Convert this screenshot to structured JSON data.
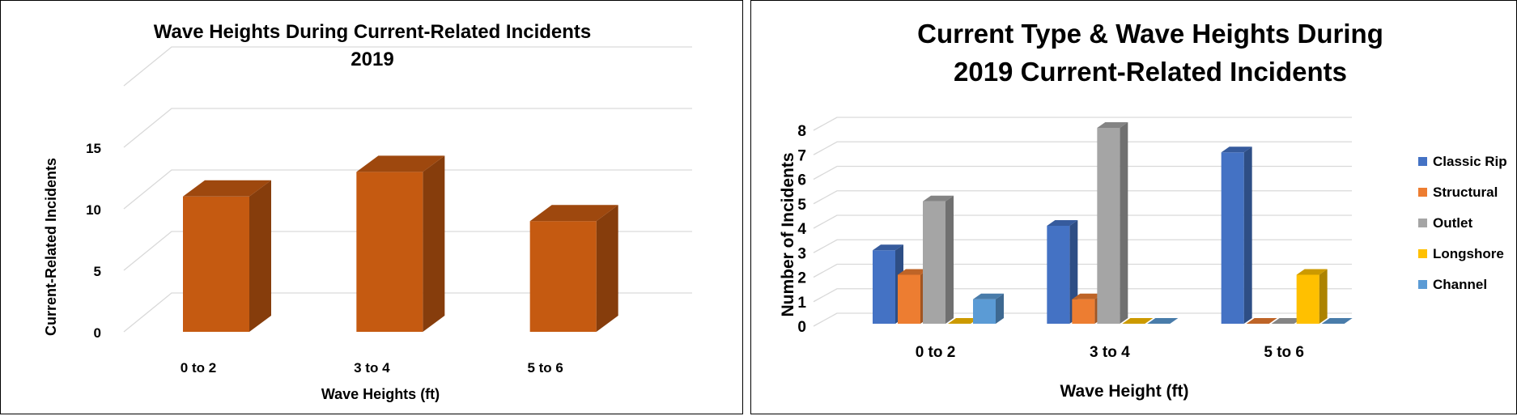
{
  "chart_data": [
    {
      "type": "bar",
      "style": "3d-column",
      "title_lines": [
        "Wave Heights During Current-Related Incidents",
        "2019"
      ],
      "xlabel": "Wave Heights (ft)",
      "ylabel": "Current-Related Incidents",
      "categories": [
        "0 to 2",
        "3 to 4",
        "5 to 6"
      ],
      "yticks": [
        "0",
        "5",
        "10",
        "15"
      ],
      "ylim": [
        0,
        15
      ],
      "series": [
        {
          "values": [
            11,
            13,
            9
          ],
          "color": "#C55A11"
        }
      ],
      "grid": true,
      "legend": "none"
    },
    {
      "type": "bar",
      "style": "3d-clustered-column",
      "title_lines": [
        "Current Type & Wave Heights During",
        "2019 Current-Related Incidents"
      ],
      "xlabel": "Wave Height (ft)",
      "ylabel": "Number of Incidents",
      "categories": [
        "0 to 2",
        "3 to 4",
        "5 to 6"
      ],
      "yticks": [
        "0",
        "1",
        "2",
        "3",
        "4",
        "5",
        "6",
        "7",
        "8"
      ],
      "ylim": [
        0,
        8
      ],
      "series": [
        {
          "name": "Classic Rip",
          "values": [
            3,
            4,
            7
          ],
          "color": "#4472C4"
        },
        {
          "name": "Structural",
          "values": [
            2,
            1,
            0
          ],
          "color": "#ED7D31"
        },
        {
          "name": "Outlet",
          "values": [
            5,
            8,
            0
          ],
          "color": "#A5A5A5"
        },
        {
          "name": "Longshore",
          "values": [
            0,
            0,
            2
          ],
          "color": "#FFC000"
        },
        {
          "name": "Channel",
          "values": [
            1,
            0,
            0
          ],
          "color": "#5B9BD5"
        }
      ],
      "grid": true,
      "legend": "right"
    }
  ]
}
